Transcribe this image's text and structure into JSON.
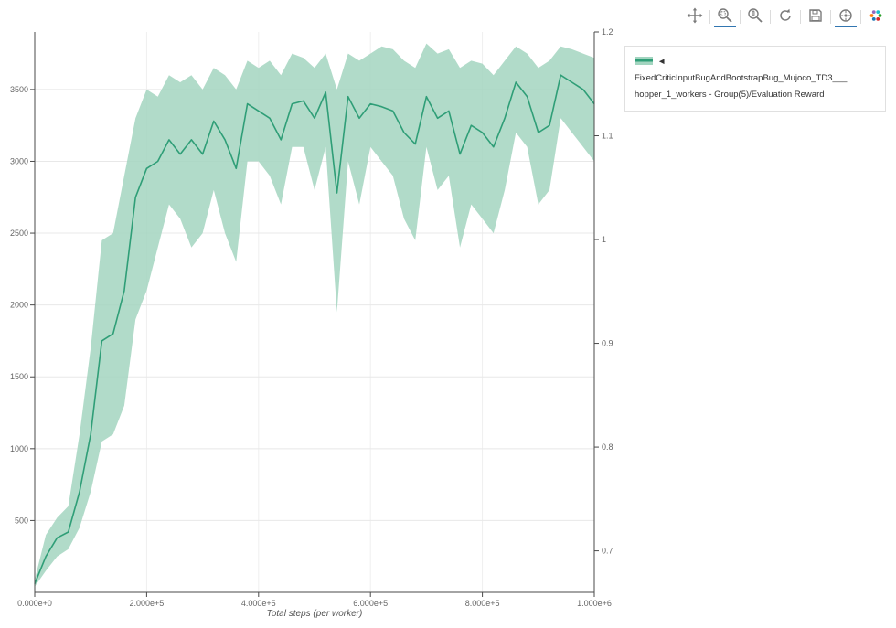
{
  "page": {
    "background": "#ffffff"
  },
  "toolbar": {
    "tools": [
      "pan",
      "box-zoom",
      "wheel-zoom",
      "reset",
      "save",
      "hover",
      "bokeh-logo"
    ],
    "active_tools": [
      "box-zoom",
      "hover"
    ],
    "accent_color": "#3276b1"
  },
  "legend": {
    "line1": "◄ FixedCriticInputBugAndBootstrapBug_Mujoco_TD3___",
    "line2": "hopper_1_workers - Group(5)/Evaluation Reward"
  },
  "chart_data": {
    "type": "line",
    "title": "",
    "xlabel": "Total steps (per worker)",
    "ylabel": "",
    "grid": true,
    "legend_position": "top-right-outside",
    "xlim": [
      0,
      1000000
    ],
    "ylim_left": [
      0,
      3900
    ],
    "ylim_right": [
      0.66,
      1.2
    ],
    "x_ticks": {
      "values": [
        0,
        200000,
        400000,
        600000,
        800000,
        1000000
      ],
      "labels": [
        "0.000e+0",
        "2.000e+5",
        "4.000e+5",
        "6.000e+5",
        "8.000e+5",
        "1.000e+6"
      ]
    },
    "y_ticks_left": {
      "values": [
        500,
        1000,
        1500,
        2000,
        2500,
        3000,
        3500
      ],
      "labels": [
        "500",
        "1000",
        "1500",
        "2000",
        "2500",
        "3000",
        "3500"
      ]
    },
    "y_ticks_right": {
      "values": [
        0.7,
        0.8,
        0.9,
        1.0,
        1.1,
        1.2
      ],
      "labels": [
        "0.7",
        "0.8",
        "0.9",
        "1",
        "1.1",
        "1.2"
      ]
    },
    "series": [
      {
        "name": "FixedCriticInputBugAndBootstrapBug_Mujoco_TD3___hopper_1_workers - Group(5)/Evaluation Reward",
        "color": "#2f9e77",
        "band_color": "#a3d5c0",
        "band_opacity": 0.85,
        "x": [
          0,
          20000,
          40000,
          60000,
          80000,
          100000,
          120000,
          140000,
          160000,
          180000,
          200000,
          220000,
          240000,
          260000,
          280000,
          300000,
          320000,
          340000,
          360000,
          380000,
          400000,
          420000,
          440000,
          460000,
          480000,
          500000,
          520000,
          540000,
          560000,
          580000,
          600000,
          620000,
          640000,
          660000,
          680000,
          700000,
          720000,
          740000,
          760000,
          780000,
          800000,
          820000,
          840000,
          860000,
          880000,
          900000,
          920000,
          940000,
          960000,
          980000,
          1000000
        ],
        "mean": [
          60,
          250,
          380,
          420,
          700,
          1100,
          1750,
          1800,
          2100,
          2750,
          2950,
          3000,
          3150,
          3050,
          3150,
          3050,
          3280,
          3150,
          2950,
          3400,
          3350,
          3300,
          3150,
          3400,
          3420,
          3300,
          3480,
          2780,
          3450,
          3300,
          3400,
          3380,
          3350,
          3200,
          3120,
          3450,
          3300,
          3350,
          3050,
          3250,
          3200,
          3100,
          3300,
          3550,
          3450,
          3200,
          3250,
          3600,
          3550,
          3500,
          3400
        ],
        "lower": [
          40,
          150,
          250,
          300,
          450,
          700,
          1050,
          1100,
          1300,
          1900,
          2100,
          2400,
          2700,
          2600,
          2400,
          2500,
          2800,
          2500,
          2300,
          3000,
          3000,
          2900,
          2700,
          3100,
          3100,
          2800,
          3100,
          1950,
          3000,
          2700,
          3100,
          3000,
          2900,
          2600,
          2450,
          3100,
          2800,
          2900,
          2400,
          2700,
          2600,
          2500,
          2800,
          3200,
          3100,
          2700,
          2800,
          3300,
          3200,
          3100,
          3000
        ],
        "upper": [
          90,
          400,
          520,
          600,
          1100,
          1700,
          2450,
          2500,
          2900,
          3300,
          3500,
          3450,
          3600,
          3550,
          3600,
          3500,
          3650,
          3600,
          3500,
          3700,
          3650,
          3700,
          3600,
          3750,
          3720,
          3650,
          3750,
          3500,
          3750,
          3700,
          3750,
          3800,
          3780,
          3700,
          3650,
          3820,
          3750,
          3780,
          3650,
          3700,
          3680,
          3600,
          3700,
          3800,
          3750,
          3650,
          3700,
          3800,
          3780,
          3750,
          3720
        ]
      }
    ]
  }
}
